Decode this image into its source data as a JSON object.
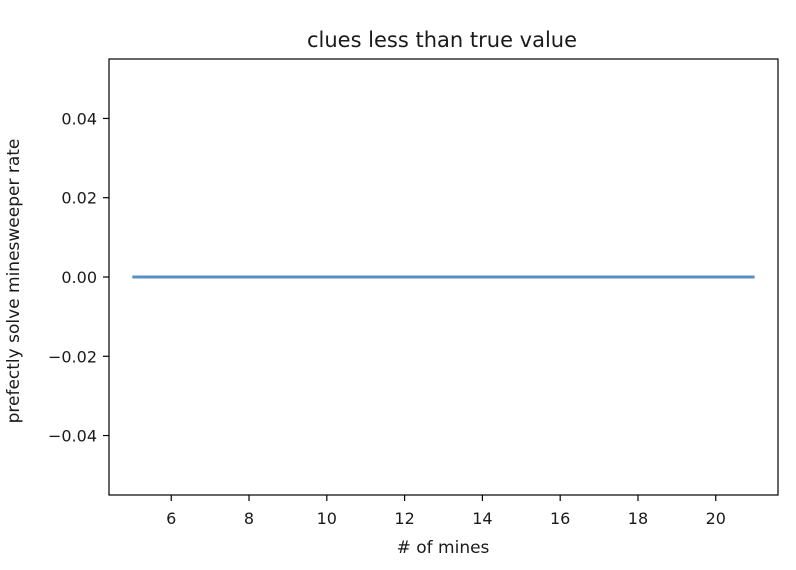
{
  "chart_data": {
    "type": "line",
    "title": "clues less than true value",
    "xlabel": "# of mines",
    "ylabel": "prefectly solve minesweeper rate",
    "xlim": [
      4.4,
      21.6
    ],
    "ylim": [
      -0.055,
      0.055
    ],
    "x_ticks": [
      6,
      8,
      10,
      12,
      14,
      16,
      18,
      20
    ],
    "x_tick_labels": [
      "6",
      "8",
      "10",
      "12",
      "14",
      "16",
      "18",
      "20"
    ],
    "y_ticks": [
      0.04,
      0.02,
      0.0,
      -0.02,
      -0.04
    ],
    "y_tick_labels": [
      "0.04",
      "0.02",
      "0.00",
      "−0.02",
      "−0.04"
    ],
    "grid": false,
    "series": [
      {
        "color": "#5b8fc4",
        "x": [
          5,
          6,
          7,
          8,
          9,
          10,
          11,
          12,
          13,
          14,
          15,
          16,
          17,
          18,
          19,
          20,
          21
        ],
        "y": [
          0,
          0,
          0,
          0,
          0,
          0,
          0,
          0,
          0,
          0,
          0,
          0,
          0,
          0,
          0,
          0,
          0
        ]
      }
    ]
  }
}
